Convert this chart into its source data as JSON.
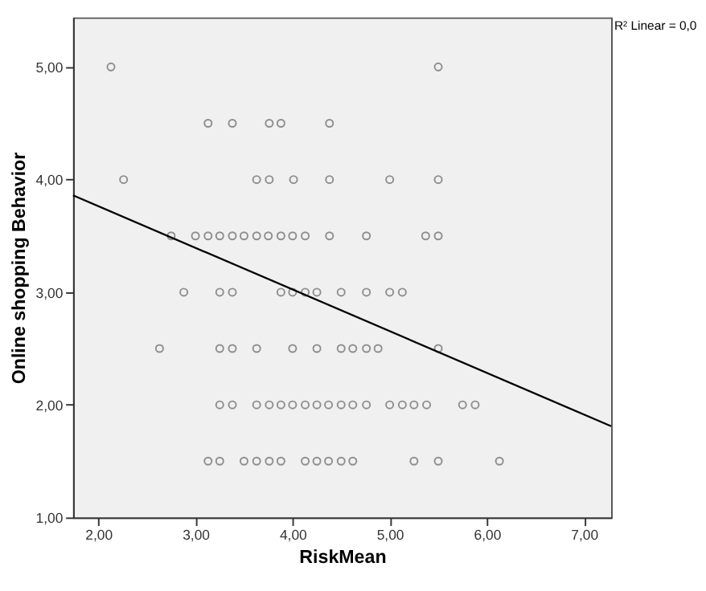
{
  "chart_data": {
    "type": "scatter",
    "xlabel": "RiskMean",
    "ylabel": "Online shopping Behavior",
    "marker": "circle",
    "grid": false,
    "xlim": [
      1.74,
      7.28
    ],
    "ylim": [
      1.0,
      5.44
    ],
    "xticks": [
      {
        "value": 2,
        "label": "2,00"
      },
      {
        "value": 3,
        "label": "3,00"
      },
      {
        "value": 4,
        "label": "4,00"
      },
      {
        "value": 5,
        "label": "5,00"
      },
      {
        "value": 6,
        "label": "6,00"
      },
      {
        "value": 7,
        "label": "7,00"
      }
    ],
    "yticks": [
      {
        "value": 1,
        "label": "1,00"
      },
      {
        "value": 2,
        "label": "2,00"
      },
      {
        "value": 3,
        "label": "3,00"
      },
      {
        "value": 4,
        "label": "4,00"
      },
      {
        "value": 5,
        "label": "5,00"
      }
    ],
    "annotations": [
      "R² Linear = 0,0"
    ],
    "series": [
      {
        "color": "#666666",
        "x": [
          2.13,
          5.5,
          3.13,
          3.38,
          3.76,
          3.88,
          4.38,
          2.26,
          3.63,
          3.76,
          4.01,
          4.38,
          5.0,
          5.5,
          2.75,
          3.0,
          3.13,
          3.25,
          3.38,
          3.5,
          3.63,
          3.75,
          3.88,
          4.0,
          4.13,
          4.38,
          4.76,
          5.37,
          5.5,
          2.88,
          3.25,
          3.38,
          3.88,
          4.0,
          4.13,
          4.25,
          4.5,
          4.76,
          5.0,
          5.13,
          2.63,
          3.25,
          3.38,
          3.63,
          4.0,
          4.25,
          4.5,
          4.62,
          4.76,
          4.88,
          5.5,
          3.25,
          3.38,
          3.63,
          3.76,
          3.88,
          4.0,
          4.13,
          4.25,
          4.37,
          4.5,
          4.62,
          4.76,
          5.0,
          5.13,
          5.25,
          5.38,
          5.75,
          5.88,
          3.13,
          3.25,
          3.5,
          3.63,
          3.76,
          3.88,
          4.13,
          4.25,
          4.37,
          4.5,
          4.62,
          5.25,
          5.5,
          6.13
        ],
        "values": [
          5.0,
          5.0,
          4.5,
          4.5,
          4.5,
          4.5,
          4.5,
          4.0,
          4.0,
          4.0,
          4.0,
          4.0,
          4.0,
          4.0,
          3.5,
          3.5,
          3.5,
          3.5,
          3.5,
          3.5,
          3.5,
          3.5,
          3.5,
          3.5,
          3.5,
          3.5,
          3.5,
          3.5,
          3.5,
          3.0,
          3.0,
          3.0,
          3.0,
          3.0,
          3.0,
          3.0,
          3.0,
          3.0,
          3.0,
          3.0,
          2.5,
          2.5,
          2.5,
          2.5,
          2.5,
          2.5,
          2.5,
          2.5,
          2.5,
          2.5,
          2.5,
          2.0,
          2.0,
          2.0,
          2.0,
          2.0,
          2.0,
          2.0,
          2.0,
          2.0,
          2.0,
          2.0,
          2.0,
          2.0,
          2.0,
          2.0,
          2.0,
          2.0,
          2.0,
          1.5,
          1.5,
          1.5,
          1.5,
          1.5,
          1.5,
          1.5,
          1.5,
          1.5,
          1.5,
          1.5,
          1.5,
          1.5,
          1.5
        ]
      },
      {
        "type": "line",
        "marker": "none",
        "color": "#000000",
        "x": [
          1.74,
          7.28
        ],
        "values": [
          3.86,
          1.81
        ]
      }
    ]
  }
}
